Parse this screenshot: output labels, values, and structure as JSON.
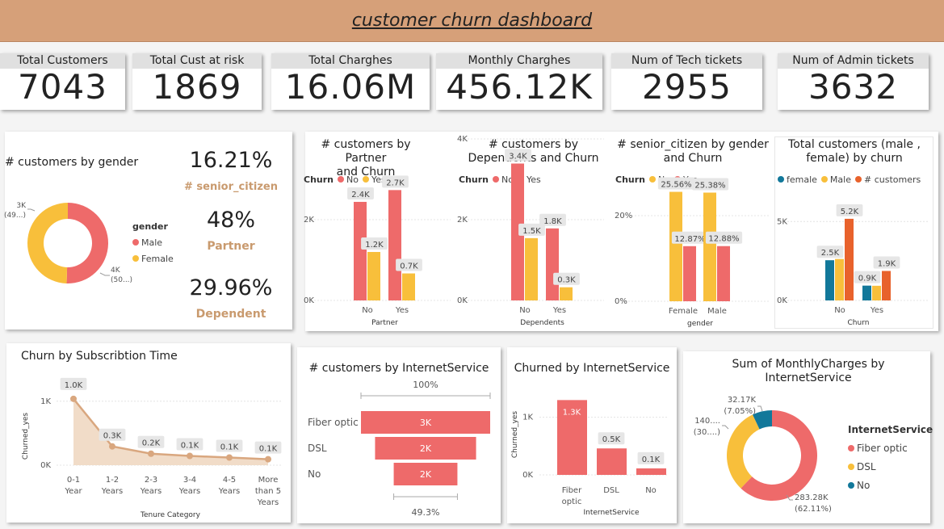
{
  "header": {
    "title": "customer churn dashboard"
  },
  "kpis": [
    {
      "label": "Total Customers",
      "value": "7043"
    },
    {
      "label": "Total Cust at risk",
      "value": "1869"
    },
    {
      "label": "Total Charghes",
      "value": "16.06M"
    },
    {
      "label": "Monthly Charghes",
      "value": "456.12K"
    },
    {
      "label": "Num of Tech tickets",
      "value": "2955"
    },
    {
      "label": "Num of Admin tickets",
      "value": "3632"
    }
  ],
  "stats": [
    {
      "value": "16.21%",
      "label": "# senior_citizen"
    },
    {
      "value": "48%",
      "label": "Partner"
    },
    {
      "value": "29.96%",
      "label": "Dependent"
    }
  ],
  "colors": {
    "no": "#ee6a6a",
    "yes": "#f8bf3b",
    "teal": "#12789a",
    "orange": "#e8622c",
    "tan": "#d9a77f"
  },
  "chart_data": [
    {
      "id": "gender",
      "type": "pie",
      "title": "# customers by gender",
      "legend_title": "gender",
      "labels": [
        "Male",
        "Female"
      ],
      "values": [
        3555,
        3488
      ],
      "data_labels": [
        [
          "4K",
          "(50...)"
        ],
        [
          "3K",
          "(49...)"
        ]
      ]
    },
    {
      "id": "partner",
      "type": "bar",
      "title": [
        "# customers by Partner",
        "and Churn"
      ],
      "legend_title": "Churn",
      "xlabel": "Partner",
      "categories": [
        "No",
        "Yes"
      ],
      "series": [
        {
          "name": "No",
          "values": [
            2441,
            2733
          ],
          "labels": [
            "2.4K",
            "2.7K"
          ]
        },
        {
          "name": "Yes",
          "values": [
            1200,
            669
          ],
          "labels": [
            "1.2K",
            "0.7K"
          ]
        }
      ],
      "yticks": [
        "0K",
        "2K"
      ],
      "ylim": [
        0,
        3000
      ]
    },
    {
      "id": "dependents",
      "type": "bar",
      "title": [
        "# customers by",
        "Dependents and Churn"
      ],
      "legend_title": "Churn",
      "xlabel": "Dependents",
      "categories": [
        "No",
        "Yes"
      ],
      "series": [
        {
          "name": "No",
          "values": [
            3390,
            1784
          ],
          "labels": [
            "3.4K",
            "1.8K"
          ]
        },
        {
          "name": "Yes",
          "values": [
            1543,
            326
          ],
          "labels": [
            "1.5K",
            "0.3K"
          ]
        }
      ],
      "yticks": [
        "0K",
        "2K",
        "4K"
      ],
      "ylim": [
        0,
        4000
      ]
    },
    {
      "id": "senior",
      "type": "bar",
      "title": [
        "# senior_citizen by gender",
        "and Churn"
      ],
      "legend_title": "Churn",
      "xlabel": "gender",
      "categories": [
        "Female",
        "Male"
      ],
      "series": [
        {
          "name": "No",
          "values": [
            25.56,
            25.38
          ],
          "labels": [
            "25.56%",
            "25.38%"
          ]
        },
        {
          "name": "Yes",
          "values": [
            12.87,
            12.88
          ],
          "labels": [
            "12.87%",
            "12.88%"
          ]
        }
      ],
      "yticks": [
        "0%",
        "20%"
      ],
      "ylim": [
        0,
        30
      ]
    },
    {
      "id": "total_gender",
      "type": "bar",
      "title": [
        "Total customers (male ,",
        "female) by churn"
      ],
      "xlabel": "Churn",
      "categories": [
        "No",
        "Yes"
      ],
      "series": [
        {
          "name": "female",
          "values": [
            2549,
            939
          ],
          "labels": [
            "2.5K",
            "0.9K"
          ]
        },
        {
          "name": "Male",
          "values": [
            2625,
            930
          ]
        },
        {
          "name": "# customers",
          "values": [
            5174,
            1869
          ],
          "labels": [
            "5.2K",
            "1.9K"
          ]
        }
      ],
      "yticks": [
        "0K",
        "5K"
      ],
      "ylim": [
        0,
        6500
      ]
    },
    {
      "id": "tenure",
      "type": "area",
      "title": "Churn by Subscribtion Time",
      "xlabel": "Tenure Category",
      "ylabel": "Churned_yes",
      "categories": [
        [
          "0-1",
          "Year"
        ],
        [
          "1-2",
          "Years"
        ],
        [
          "2-3",
          "Years"
        ],
        [
          "3-4",
          "Years"
        ],
        [
          "4-5",
          "Years"
        ],
        [
          "More",
          "than 5",
          "Years"
        ]
      ],
      "values": [
        1037,
        294,
        180,
        145,
        120,
        93
      ],
      "labels": [
        "1.0K",
        "0.3K",
        "0.2K",
        "0.1K",
        "0.1K",
        "0.1K"
      ],
      "yticks": [
        "0K",
        "1K"
      ],
      "ylim": [
        0,
        1300
      ]
    },
    {
      "id": "funnel",
      "type": "bar",
      "title": "# customers by InternetService",
      "categories": [
        "Fiber optic",
        "DSL",
        "No"
      ],
      "values": [
        3096,
        2421,
        1526
      ],
      "labels": [
        "3K",
        "2K",
        "2K"
      ],
      "top_label": "100%",
      "bottom_label": "49.3%"
    },
    {
      "id": "churn_internet",
      "type": "bar",
      "title": "Churned by InternetService",
      "xlabel": "InternetService",
      "ylabel": "Churned_yes",
      "categories": [
        [
          "Fiber",
          "optic"
        ],
        [
          "DSL"
        ],
        [
          "No"
        ]
      ],
      "values": [
        1297,
        459,
        113
      ],
      "labels": [
        "1.3K",
        "0.5K",
        "0.1K"
      ],
      "yticks": [
        "0K",
        "1K"
      ],
      "ylim": [
        0,
        1400
      ]
    },
    {
      "id": "monthly_internet",
      "type": "pie",
      "title": [
        "Sum of MonthlyCharges by",
        "InternetService"
      ],
      "legend_title": "InternetService",
      "labels": [
        "Fiber optic",
        "DSL",
        "No"
      ],
      "values": [
        283.28,
        140.67,
        32.17
      ],
      "data_labels": [
        [
          "283.28K",
          "(62.11%)"
        ],
        [
          "140....",
          "(30....)"
        ],
        [
          "32.17K",
          "(7.05%)"
        ]
      ]
    }
  ]
}
